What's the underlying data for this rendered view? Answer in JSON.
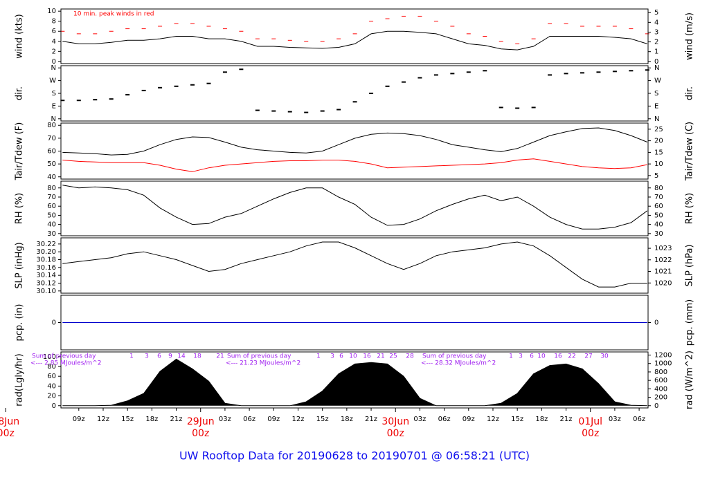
{
  "title": "UW Rooftop Data for 20190628  to  20190701 @ 06:58:21  (UTC)",
  "chart_data": [
    {
      "type": "line",
      "ylabel": "wind (kts)",
      "y2label": "wind (m/s)",
      "annotation": "10 min. peak winds in red",
      "xlim": [
        6.8,
        79.1
      ],
      "ylim": [
        0,
        10
      ],
      "yticks": [
        0,
        2,
        4,
        6,
        8,
        10
      ],
      "y2lim": [
        0,
        5.144
      ],
      "y2ticks": [
        0,
        1,
        2,
        3,
        4,
        5
      ],
      "x": [
        7,
        9,
        11,
        13,
        15,
        17,
        19,
        21,
        23,
        25,
        27,
        29,
        31,
        33,
        35,
        37,
        39,
        41,
        43,
        45,
        47,
        49,
        51,
        53,
        55,
        57,
        59,
        61,
        63,
        65,
        67,
        69,
        71,
        73,
        75,
        77,
        79
      ],
      "series": [
        {
          "color": "#000000",
          "marker": "line",
          "values": [
            4,
            3.5,
            3.5,
            3.8,
            4.2,
            4.2,
            4.5,
            5,
            5,
            4.5,
            4.5,
            4,
            3,
            3,
            2.8,
            2.7,
            2.6,
            2.8,
            3.5,
            5.5,
            6,
            6,
            5.8,
            5.5,
            4.5,
            3.5,
            3.2,
            2.5,
            2.3,
            3,
            5,
            5,
            5,
            5,
            4.8,
            4.5,
            3.5
          ]
        },
        {
          "color": "#ff0000",
          "marker": "dash",
          "values": [
            6,
            5.5,
            5.5,
            6,
            6.5,
            6.5,
            7,
            7.5,
            7.5,
            7,
            6.5,
            6,
            4.5,
            4.5,
            4.2,
            4,
            4,
            4.5,
            5.5,
            8,
            8.5,
            9,
            9,
            8,
            7,
            5.5,
            5,
            4,
            3.5,
            4.5,
            7.5,
            7.5,
            7,
            7,
            7,
            6.5,
            5.5
          ]
        }
      ]
    },
    {
      "type": "scatter",
      "ylabel": "dir.",
      "y2label": "dir.",
      "color": "#000000",
      "xlim": [
        6.8,
        79.1
      ],
      "ylim": [
        0,
        360
      ],
      "yticks": [
        {
          "value": 0,
          "label": "N"
        },
        {
          "value": 90,
          "label": "E"
        },
        {
          "value": 180,
          "label": "S"
        },
        {
          "value": 270,
          "label": "W"
        },
        {
          "value": 360,
          "label": "N"
        }
      ],
      "y2lim": [
        0,
        360
      ],
      "y2ticks": [
        {
          "value": 0,
          "label": "N"
        },
        {
          "value": 90,
          "label": "E"
        },
        {
          "value": 180,
          "label": "S"
        },
        {
          "value": 270,
          "label": "W"
        },
        {
          "value": 360,
          "label": "N"
        }
      ],
      "x": [
        7,
        9,
        11,
        13,
        15,
        17,
        19,
        21,
        23,
        25,
        27,
        29,
        31,
        33,
        35,
        37,
        39,
        41,
        43,
        45,
        47,
        49,
        51,
        53,
        55,
        57,
        59,
        61,
        63,
        65,
        67,
        69,
        71,
        73,
        75,
        77,
        79
      ],
      "values": [
        130,
        130,
        135,
        140,
        170,
        200,
        220,
        230,
        240,
        250,
        330,
        350,
        60,
        55,
        50,
        45,
        55,
        65,
        120,
        180,
        230,
        260,
        290,
        310,
        320,
        330,
        340,
        80,
        75,
        80,
        310,
        320,
        325,
        330,
        335,
        340,
        345
      ]
    },
    {
      "type": "line",
      "ylabel": "Tair/Tdew (F)",
      "y2label": "Tair/Tdew (C)",
      "xlim": [
        6.8,
        79.1
      ],
      "ylim": [
        40,
        80
      ],
      "yticks": [
        40,
        50,
        60,
        70,
        80
      ],
      "y2lim": [
        4.444,
        26.667
      ],
      "y2ticks": [
        5,
        10,
        15,
        20,
        25
      ],
      "x": [
        7,
        9,
        11,
        13,
        15,
        17,
        19,
        21,
        23,
        25,
        27,
        29,
        31,
        33,
        35,
        37,
        39,
        41,
        43,
        45,
        47,
        49,
        51,
        53,
        55,
        57,
        59,
        61,
        63,
        65,
        67,
        69,
        71,
        73,
        75,
        77,
        79
      ],
      "series": [
        {
          "color": "#000000",
          "marker": "line",
          "values": [
            59,
            58.5,
            58,
            57,
            57.5,
            60,
            65,
            69,
            71,
            70.5,
            67,
            63,
            61,
            60,
            59,
            58.5,
            60,
            65,
            70,
            73,
            74,
            73.5,
            72,
            69,
            65,
            63,
            61,
            59.5,
            62,
            67,
            72,
            75,
            77.5,
            78,
            76,
            72,
            67
          ]
        },
        {
          "color": "#ff0000",
          "marker": "line",
          "values": [
            53,
            52,
            51.5,
            51,
            51,
            51,
            49,
            46,
            44,
            47,
            49,
            50,
            51,
            52,
            52.5,
            52.5,
            53,
            53,
            52,
            50,
            47,
            47.5,
            48,
            48.5,
            49,
            49.5,
            50,
            51,
            53,
            54,
            52,
            50,
            48,
            47,
            46.5,
            47,
            49.5
          ]
        }
      ]
    },
    {
      "type": "line",
      "ylabel": "RH (%)",
      "y2label": "RH (%)",
      "xlim": [
        6.8,
        79.1
      ],
      "ylim": [
        30,
        85
      ],
      "yticks": [
        30,
        40,
        50,
        60,
        70,
        80
      ],
      "y2lim": [
        30,
        85
      ],
      "y2ticks": [
        30,
        40,
        50,
        60,
        70,
        80
      ],
      "x": [
        7,
        9,
        11,
        13,
        15,
        17,
        19,
        21,
        23,
        25,
        27,
        29,
        31,
        33,
        35,
        37,
        39,
        41,
        43,
        45,
        47,
        49,
        51,
        53,
        55,
        57,
        59,
        61,
        63,
        65,
        67,
        69,
        71,
        73,
        75,
        77,
        79
      ],
      "series": [
        {
          "color": "#000000",
          "marker": "line",
          "values": [
            83,
            80,
            81,
            80,
            78,
            72,
            58,
            48,
            40,
            41,
            48,
            52,
            60,
            68,
            75,
            80,
            80,
            70,
            62,
            48,
            39,
            40,
            46,
            55,
            62,
            68,
            72,
            66,
            70,
            60,
            48,
            40,
            35,
            35,
            37,
            42,
            55
          ]
        }
      ]
    },
    {
      "type": "line",
      "ylabel": "SLP (inHg)",
      "y2label": "SLP (hPa)",
      "xlim": [
        6.8,
        79.1
      ],
      "ylim": [
        30.1,
        30.23
      ],
      "yticks": [
        {
          "value": 30.1,
          "label": "30.10"
        },
        30.12,
        30.14,
        30.16,
        30.18,
        {
          "value": 30.2,
          "label": "30.20"
        },
        30.22
      ],
      "y2lim": [
        1019.31,
        1023.71
      ],
      "y2ticks": [
        1020,
        1021,
        1022,
        1023
      ],
      "x": [
        7,
        9,
        11,
        13,
        15,
        17,
        19,
        21,
        23,
        25,
        27,
        29,
        31,
        33,
        35,
        37,
        39,
        41,
        43,
        45,
        47,
        49,
        51,
        53,
        55,
        57,
        59,
        61,
        63,
        65,
        67,
        69,
        71,
        73,
        75,
        77,
        79
      ],
      "series": [
        {
          "color": "#000000",
          "marker": "line",
          "values": [
            30.17,
            30.175,
            30.18,
            30.185,
            30.195,
            30.2,
            30.19,
            30.18,
            30.165,
            30.15,
            30.155,
            30.17,
            30.18,
            30.19,
            30.2,
            30.215,
            30.225,
            30.225,
            30.21,
            30.19,
            30.17,
            30.155,
            30.17,
            30.19,
            30.2,
            30.205,
            30.21,
            30.22,
            30.225,
            30.215,
            30.19,
            30.16,
            30.13,
            30.11,
            30.11,
            30.12,
            30.12
          ]
        }
      ]
    },
    {
      "type": "line",
      "ylabel": "pcp. (in)",
      "y2label": "pcp. (mm)",
      "xlim": [
        6.8,
        79.1
      ],
      "ylim": [
        -1,
        1
      ],
      "yticks": [
        0
      ],
      "y2lim": [
        -25.4,
        25.4
      ],
      "y2ticks": [
        0
      ],
      "x": [
        7,
        9,
        11,
        13,
        15,
        17,
        19,
        21,
        23,
        25,
        27,
        29,
        31,
        33,
        35,
        37,
        39,
        41,
        43,
        45,
        47,
        49,
        51,
        53,
        55,
        57,
        59,
        61,
        63,
        65,
        67,
        69,
        71,
        73,
        75,
        77,
        79
      ],
      "series": [
        {
          "color": "#0000cc",
          "marker": "line",
          "values": [
            0,
            0,
            0,
            0,
            0,
            0,
            0,
            0,
            0,
            0,
            0,
            0,
            0,
            0,
            0,
            0,
            0,
            0,
            0,
            0,
            0,
            0,
            0,
            0,
            0,
            0,
            0,
            0,
            0,
            0,
            0,
            0,
            0,
            0,
            0,
            0,
            0
          ]
        }
      ]
    },
    {
      "type": "area",
      "ylabel": "rad(Lgly/hr)",
      "y2label": "rad (W/m^2)",
      "xlim": [
        6.8,
        79.1
      ],
      "ylim": [
        0,
        105
      ],
      "yticks": [
        0,
        20,
        40,
        60,
        80,
        100
      ],
      "y2lim": [
        0,
        1221
      ],
      "y2ticks": [
        0,
        200,
        400,
        600,
        800,
        1000,
        1200
      ],
      "x": [
        7,
        9,
        11,
        13,
        15,
        17,
        19,
        21,
        23,
        25,
        27,
        29,
        31,
        33,
        35,
        37,
        39,
        41,
        43,
        45,
        47,
        49,
        51,
        53,
        55,
        57,
        59,
        61,
        63,
        65,
        67,
        69,
        71,
        73,
        75,
        77,
        79
      ],
      "series": [
        {
          "color": "#000000",
          "marker": "line",
          "values": [
            0,
            0,
            0,
            1,
            10,
            25,
            70,
            95,
            75,
            50,
            5,
            0,
            0,
            0,
            0,
            8,
            30,
            65,
            85,
            88,
            85,
            60,
            15,
            0,
            0,
            0,
            0,
            5,
            25,
            65,
            82,
            85,
            75,
            45,
            8,
            1,
            0
          ]
        }
      ],
      "daily_sums": [
        {
          "title": "Sum of previous day",
          "text": "<--- 2.85 MJoules/m^2"
        },
        {
          "title": "Sum of previous day",
          "text": "<--- 21.23 MJoules/m^2"
        },
        {
          "title": "Sum of previous day",
          "text": "<--- 28.32 MJoules/m^2"
        }
      ],
      "hour_marks": [
        [
          "1",
          "3",
          "6",
          "9",
          "14",
          "18",
          "21"
        ],
        [
          "1",
          "3",
          "6",
          "10",
          "16",
          "21",
          "25",
          "28"
        ],
        [
          "1",
          "3",
          "6",
          "10",
          "16",
          "22",
          "27",
          "30"
        ]
      ],
      "xticks": [
        {
          "value": 9,
          "label": "09z"
        },
        {
          "value": 12,
          "label": "12z"
        },
        {
          "value": 15,
          "label": "15z"
        },
        {
          "value": 18,
          "label": "18z"
        },
        {
          "value": 21,
          "label": "21z"
        },
        {
          "value": 27,
          "label": "03z"
        },
        {
          "value": 30,
          "label": "06z"
        },
        {
          "value": 33,
          "label": "09z"
        },
        {
          "value": 36,
          "label": "12z"
        },
        {
          "value": 39,
          "label": "15z"
        },
        {
          "value": 42,
          "label": "18z"
        },
        {
          "value": 45,
          "label": "21z"
        },
        {
          "value": 51,
          "label": "03z"
        },
        {
          "value": 54,
          "label": "06z"
        },
        {
          "value": 57,
          "label": "09z"
        },
        {
          "value": 60,
          "label": "12z"
        },
        {
          "value": 63,
          "label": "15z"
        },
        {
          "value": 66,
          "label": "18z"
        },
        {
          "value": 69,
          "label": "21z"
        },
        {
          "value": 75,
          "label": "03z"
        },
        {
          "value": 78,
          "label": "06z"
        }
      ],
      "day_ticks": [
        {
          "value": 0,
          "label": "28Jun"
        },
        {
          "value": 24,
          "label": "29Jun"
        },
        {
          "value": 48,
          "label": "30Jun"
        },
        {
          "value": 72,
          "label": "01Jul"
        }
      ],
      "day_sublabel": "00z"
    }
  ]
}
